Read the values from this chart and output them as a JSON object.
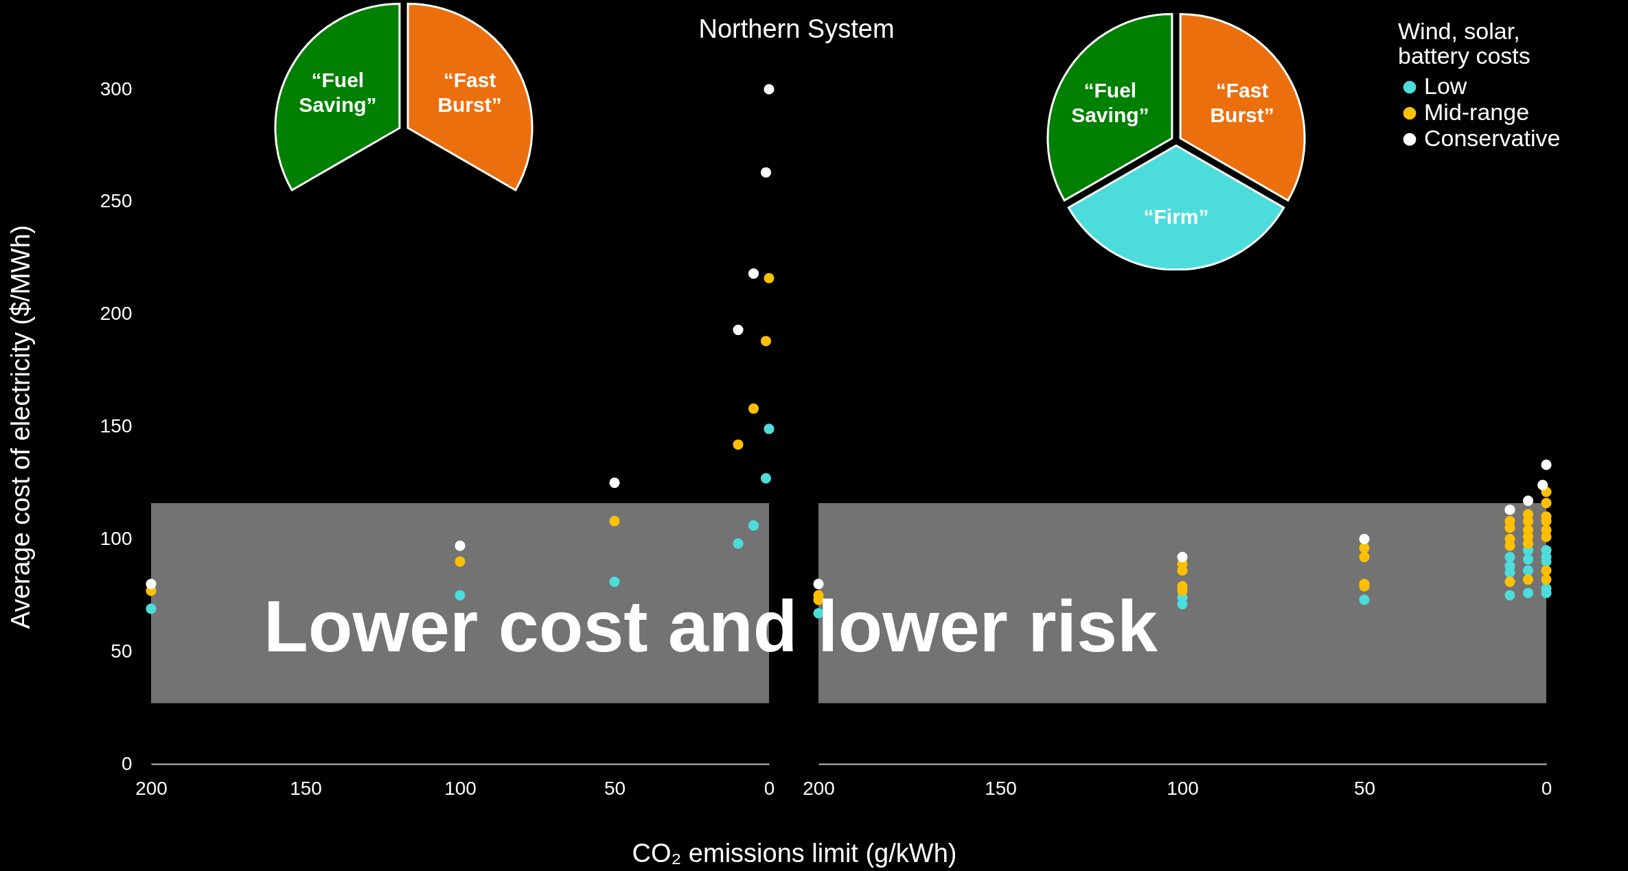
{
  "chart_data": [
    {
      "type": "scatter",
      "title": "Northern System",
      "xlabel": "CO₂ emissions limit (g/kWh)",
      "ylabel": "Average cost of electricity ($/MWh)",
      "xlim": [
        200,
        0
      ],
      "xticks": [
        200,
        150,
        100,
        50,
        0
      ],
      "ylim": [
        0,
        300
      ],
      "yticks": [
        0,
        50,
        100,
        150,
        200,
        250,
        300
      ],
      "grid": false,
      "legend": "top right",
      "legend_title": "Wind, solar, battery costs",
      "marker": "circle",
      "annotations": [
        "“Fuel Saving”",
        "“Fast Burst”"
      ],
      "bands": [
        {
          "axis": "y",
          "from": 27,
          "to": 116,
          "label": "Lower cost and lower risk",
          "color": "#737373"
        }
      ],
      "series": [
        {
          "name": "Low",
          "color": "#4ddcdc",
          "x": [
            200,
            100,
            50,
            10,
            5,
            1,
            0
          ],
          "values": [
            69,
            75,
            81,
            98,
            106,
            127,
            149
          ]
        },
        {
          "name": "Mid-range",
          "color": "#ffc000",
          "x": [
            200,
            100,
            50,
            10,
            5,
            1,
            0
          ],
          "values": [
            77,
            90,
            108,
            142,
            158,
            188,
            216
          ]
        },
        {
          "name": "Conservative",
          "color": "#ffffff",
          "x": [
            200,
            100,
            50,
            10,
            5,
            1,
            0
          ],
          "values": [
            80,
            97,
            125,
            193,
            218,
            263,
            300
          ]
        }
      ]
    },
    {
      "type": "scatter",
      "xlim": [
        200,
        0
      ],
      "xticks": [
        200,
        150,
        100,
        50,
        0
      ],
      "ylim": [
        0,
        300
      ],
      "tick_labels": "x",
      "grid": false,
      "marker": "circle",
      "annotations": [
        "“Fuel Saving”",
        "“Fast Burst”",
        "“Firm”"
      ],
      "bands": [
        {
          "axis": "y",
          "from": 27,
          "to": 116,
          "color": "#737373"
        }
      ],
      "series": [
        {
          "color": "#4ddcdc",
          "x": [
            200,
            100,
            100,
            50,
            10,
            10,
            10,
            10,
            5,
            5,
            5,
            5,
            0,
            0,
            0,
            0,
            0
          ],
          "values": [
            67,
            74,
            71,
            73,
            92,
            88,
            85,
            75,
            95,
            91,
            86,
            76,
            95,
            92,
            90,
            78,
            76
          ]
        },
        {
          "color": "#ffc000",
          "x": [
            200,
            200,
            100,
            100,
            100,
            100,
            50,
            50,
            50,
            50,
            10,
            10,
            10,
            10,
            10,
            5,
            5,
            5,
            5,
            5,
            5,
            0,
            0,
            0,
            0,
            0,
            0,
            0,
            0
          ],
          "values": [
            75,
            73,
            89,
            86,
            79,
            77,
            96,
            92,
            80,
            79,
            108,
            105,
            100,
            97,
            81,
            111,
            108,
            104,
            101,
            98,
            82,
            121,
            116,
            110,
            108,
            104,
            101,
            86,
            82
          ]
        },
        {
          "color": "#ffffff",
          "x": [
            200,
            100,
            50,
            10,
            5,
            0,
            1
          ],
          "values": [
            80,
            92,
            100,
            113,
            117,
            133,
            124
          ]
        }
      ]
    }
  ]
}
